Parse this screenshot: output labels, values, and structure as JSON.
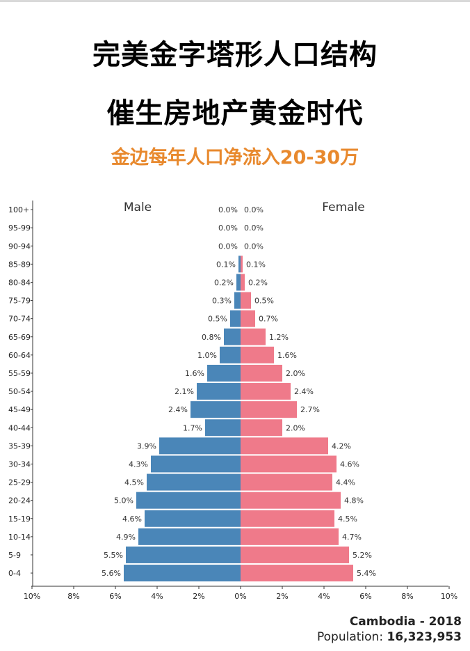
{
  "header": {
    "title_line1": "完美金字塔形人口结构",
    "title_line2": "催生房地产黄金时代",
    "subtitle": "金边每年人口净流入20-30万"
  },
  "footer": {
    "country_year": "Cambodia - 2018",
    "population_label": "Population: ",
    "population_value": "16,323,953"
  },
  "colors": {
    "male": "#4a86b8",
    "female": "#ef7a8a",
    "title": "#000000",
    "subtitle": "#e8892e"
  },
  "chart_data": {
    "type": "bar",
    "orientation": "horizontal",
    "legend": [
      "Male",
      "Female"
    ],
    "categories": [
      "100+",
      "95-99",
      "90-94",
      "85-89",
      "80-84",
      "75-79",
      "70-74",
      "65-69",
      "60-64",
      "55-59",
      "50-54",
      "45-49",
      "40-44",
      "35-39",
      "30-34",
      "25-29",
      "20-24",
      "15-19",
      "10-14",
      "5-9",
      "0-4"
    ],
    "series": [
      {
        "name": "Male",
        "values": [
          0.0,
          0.0,
          0.0,
          0.1,
          0.2,
          0.3,
          0.5,
          0.8,
          1.0,
          1.6,
          2.1,
          2.4,
          1.7,
          3.9,
          4.3,
          4.5,
          5.0,
          4.6,
          4.9,
          5.5,
          5.6
        ]
      },
      {
        "name": "Female",
        "values": [
          0.0,
          0.0,
          0.0,
          0.1,
          0.2,
          0.5,
          0.7,
          1.2,
          1.6,
          2.0,
          2.4,
          2.7,
          2.0,
          4.2,
          4.6,
          4.4,
          4.8,
          4.5,
          4.7,
          5.2,
          5.4
        ]
      }
    ],
    "x_ticks": [
      "10%",
      "8%",
      "6%",
      "4%",
      "2%",
      "0%",
      "2%",
      "4%",
      "6%",
      "8%",
      "10%"
    ],
    "xlim": [
      -10,
      10
    ],
    "unit": "%"
  }
}
